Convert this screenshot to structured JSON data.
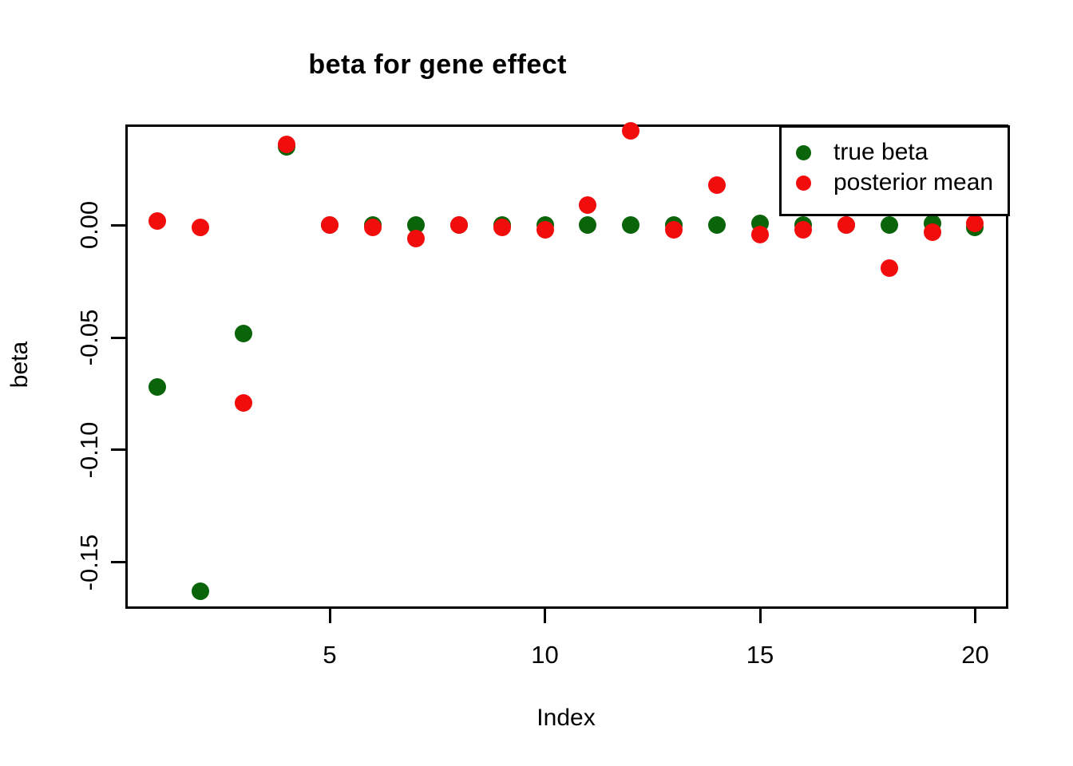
{
  "title": "beta for gene effect",
  "axes": {
    "x_label": "Index",
    "y_label": "beta"
  },
  "legend": {
    "position": "topright",
    "entries": [
      {
        "label": "true beta",
        "color": "#0a650a"
      },
      {
        "label": "posterior mean",
        "color": "#f20d0d"
      }
    ]
  },
  "chart_data": {
    "type": "scatter",
    "title": "beta for gene effect",
    "xlabel": "Index",
    "ylabel": "beta",
    "grid": false,
    "xlim": [
      0.25,
      20.77
    ],
    "ylim": [
      -0.1707,
      0.0449
    ],
    "x_ticks": {
      "values": [
        5,
        10,
        15,
        20
      ],
      "labels": [
        "5",
        "10",
        "15",
        "20"
      ]
    },
    "y_ticks": {
      "values": [
        0,
        -0.05,
        -0.1,
        -0.15
      ],
      "labels": [
        "0.00",
        "-0.05",
        "-0.10",
        "-0.15"
      ]
    },
    "x": [
      1,
      2,
      3,
      4,
      5,
      6,
      7,
      8,
      9,
      10,
      11,
      12,
      13,
      14,
      15,
      16,
      17,
      18,
      19,
      20
    ],
    "series": [
      {
        "name": "true beta",
        "color": "#0a650a",
        "marker": "filled-circle",
        "values": [
          -0.072,
          -0.163,
          -0.048,
          0.035,
          0.0,
          0.0,
          0.0,
          0.0,
          0.0,
          0.0,
          0.0,
          0.0,
          0.0,
          0.0,
          0.001,
          0.0,
          0.0,
          0.0,
          0.001,
          -0.001
        ]
      },
      {
        "name": "posterior mean",
        "color": "#f20d0d",
        "marker": "filled-circle",
        "values": [
          0.002,
          -0.001,
          -0.079,
          0.036,
          0.0,
          -0.001,
          -0.006,
          0.0,
          -0.001,
          -0.002,
          0.009,
          0.042,
          -0.002,
          0.018,
          -0.004,
          -0.002,
          0.0,
          -0.019,
          -0.003,
          0.001
        ]
      }
    ]
  }
}
